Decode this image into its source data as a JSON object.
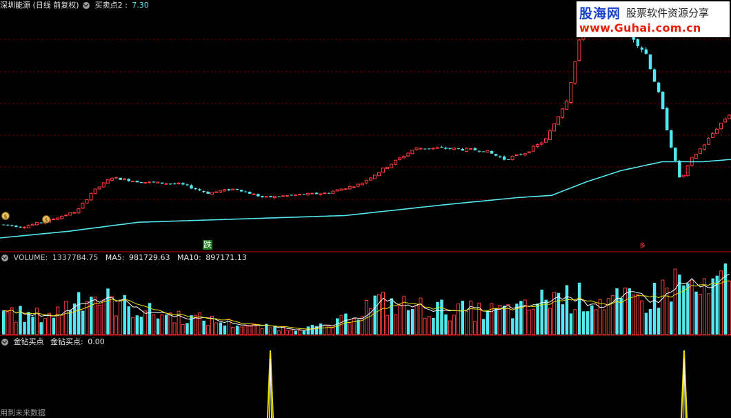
{
  "price_panel": {
    "stock_name": "深圳能源",
    "period": "(日线 前复权)",
    "indicator_label": "买卖点2 :",
    "indicator_value": "7.30"
  },
  "volume_panel": {
    "label": "VOLUME:",
    "value": "1337784.75",
    "ma5_label": "MA5:",
    "ma5_value": "981729.63",
    "ma10_label": "MA10:",
    "ma10_value": "897171.13"
  },
  "signal_panel": {
    "name": "金钻买点",
    "label": "金钻买点:",
    "value": "0.00"
  },
  "signals": {
    "drop_label": "跌",
    "right_marker": "多"
  },
  "watermark": {
    "brand": "股海网",
    "tagline": "股票软件资源分享",
    "url": "www.Guhai.com.cn"
  },
  "footer_note": "用到未来数据",
  "colors": {
    "up": "#ff3c3c",
    "down": "#53e8f0",
    "ma_long": "#53e8f0",
    "vol_ma5": "#ffffff",
    "vol_ma10": "#f0e000",
    "signal": "#f0e000",
    "grid": "#7a0000",
    "separator": "#c00000"
  },
  "chart_data": {
    "type": "candlestick",
    "note_series": "closing price trend of candles (relative), volumes per bar, long moving average, buy-point spikes",
    "price_trend": [
      [
        0,
        0.06
      ],
      [
        30,
        0.05
      ],
      [
        60,
        0.07
      ],
      [
        110,
        0.12
      ],
      [
        130,
        0.2
      ],
      [
        160,
        0.27
      ],
      [
        200,
        0.25
      ],
      [
        260,
        0.24
      ],
      [
        300,
        0.2
      ],
      [
        340,
        0.22
      ],
      [
        380,
        0.18
      ],
      [
        420,
        0.19
      ],
      [
        470,
        0.2
      ],
      [
        520,
        0.24
      ],
      [
        560,
        0.32
      ],
      [
        600,
        0.4
      ],
      [
        640,
        0.4
      ],
      [
        700,
        0.39
      ],
      [
        730,
        0.35
      ],
      [
        760,
        0.38
      ],
      [
        790,
        0.44
      ],
      [
        820,
        0.62
      ],
      [
        840,
        0.9
      ],
      [
        860,
        1.0
      ],
      [
        880,
        0.95
      ],
      [
        910,
        0.92
      ],
      [
        935,
        0.82
      ],
      [
        955,
        0.62
      ],
      [
        970,
        0.42
      ],
      [
        985,
        0.25
      ],
      [
        1000,
        0.35
      ],
      [
        1020,
        0.42
      ],
      [
        1040,
        0.5
      ],
      [
        1058,
        0.56
      ]
    ],
    "long_ma_trend": [
      [
        0,
        0.0
      ],
      [
        100,
        0.03
      ],
      [
        200,
        0.07
      ],
      [
        300,
        0.08
      ],
      [
        400,
        0.09
      ],
      [
        500,
        0.1
      ],
      [
        560,
        0.12
      ],
      [
        650,
        0.15
      ],
      [
        750,
        0.18
      ],
      [
        800,
        0.19
      ],
      [
        850,
        0.25
      ],
      [
        900,
        0.3
      ],
      [
        960,
        0.34
      ],
      [
        1020,
        0.34
      ],
      [
        1058,
        0.35
      ]
    ],
    "volume_trend": [
      [
        0,
        0.35
      ],
      [
        40,
        0.25
      ],
      [
        80,
        0.3
      ],
      [
        120,
        0.6
      ],
      [
        160,
        0.45
      ],
      [
        220,
        0.3
      ],
      [
        300,
        0.2
      ],
      [
        360,
        0.12
      ],
      [
        420,
        0.08
      ],
      [
        480,
        0.12
      ],
      [
        540,
        0.45
      ],
      [
        580,
        0.4
      ],
      [
        640,
        0.35
      ],
      [
        700,
        0.32
      ],
      [
        760,
        0.35
      ],
      [
        800,
        0.55
      ],
      [
        850,
        0.5
      ],
      [
        900,
        0.45
      ],
      [
        940,
        0.5
      ],
      [
        980,
        0.75
      ],
      [
        1020,
        0.55
      ],
      [
        1058,
        0.8
      ]
    ],
    "buy_signals_x": [
      392,
      992
    ],
    "y_ranges": {
      "price_rel": [
        0,
        1
      ],
      "volume_rel": [
        0,
        1
      ]
    },
    "grid": true
  }
}
